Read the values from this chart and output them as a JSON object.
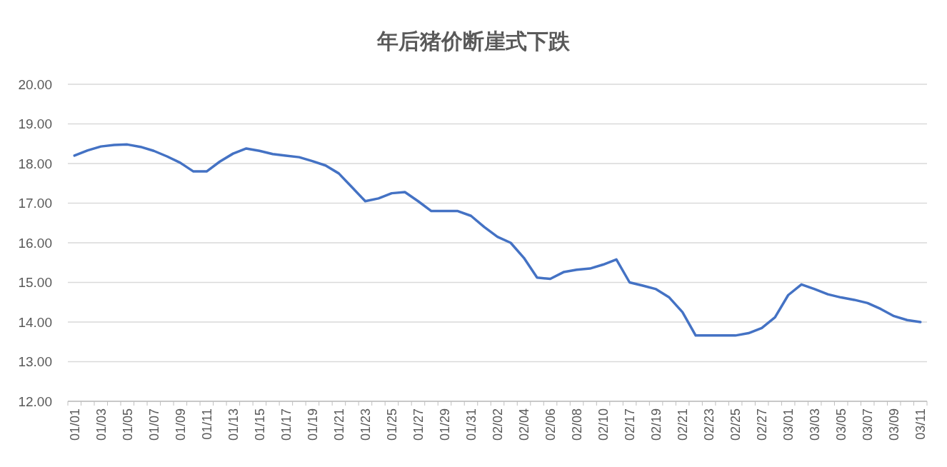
{
  "chart_data": {
    "type": "line",
    "title": "年后猪价断崖式下跌",
    "categories": [
      "01/01",
      null,
      "01/03",
      null,
      "01/05",
      null,
      "01/07",
      null,
      "01/09",
      null,
      "01/11",
      null,
      "01/13",
      null,
      "01/15",
      null,
      "01/17",
      null,
      "01/19",
      null,
      "01/21",
      null,
      "01/23",
      null,
      "01/25",
      null,
      "01/27",
      null,
      "01/29",
      null,
      "01/31",
      null,
      "02/02",
      null,
      "02/04",
      null,
      "02/06",
      null,
      "02/08",
      null,
      "02/10",
      null,
      "02/17",
      null,
      "02/19",
      null,
      "02/21",
      null,
      "02/23",
      null,
      "02/25",
      null,
      "02/27",
      null,
      "03/01",
      null,
      "03/03",
      null,
      "03/05",
      null,
      "03/07",
      null,
      "03/09",
      null,
      "03/11"
    ],
    "series": [
      {
        "color": "#4472c4",
        "values": [
          18.2,
          18.33,
          18.43,
          18.47,
          18.48,
          18.42,
          18.32,
          18.18,
          18.02,
          17.8,
          17.8,
          18.05,
          18.25,
          18.38,
          18.32,
          18.24,
          18.2,
          18.16,
          18.06,
          17.95,
          17.75,
          17.4,
          17.05,
          17.12,
          17.25,
          17.28,
          17.05,
          16.8,
          16.8,
          16.8,
          16.68,
          16.4,
          16.15,
          16.0,
          15.62,
          15.12,
          15.09,
          15.26,
          15.32,
          15.35,
          15.45,
          15.58,
          15.0,
          14.92,
          14.83,
          14.62,
          14.25,
          13.66,
          13.66,
          13.66,
          13.66,
          13.72,
          13.85,
          14.12,
          14.68,
          14.95,
          14.83,
          14.7,
          14.62,
          14.56,
          14.48,
          14.33,
          14.15,
          14.05,
          14.0
        ]
      }
    ],
    "ylim": [
      12,
      20
    ],
    "yticks": [
      {
        "value": 12,
        "label": "12.00"
      },
      {
        "value": 13,
        "label": "13.00"
      },
      {
        "value": 14,
        "label": "14.00"
      },
      {
        "value": 15,
        "label": "15.00"
      },
      {
        "value": 16,
        "label": "16.00"
      },
      {
        "value": 17,
        "label": "17.00"
      },
      {
        "value": 18,
        "label": "18.00"
      },
      {
        "value": 19,
        "label": "19.00"
      },
      {
        "value": 20,
        "label": "20.00"
      }
    ],
    "grid": "y",
    "marker": "none",
    "line_style": "solid"
  }
}
